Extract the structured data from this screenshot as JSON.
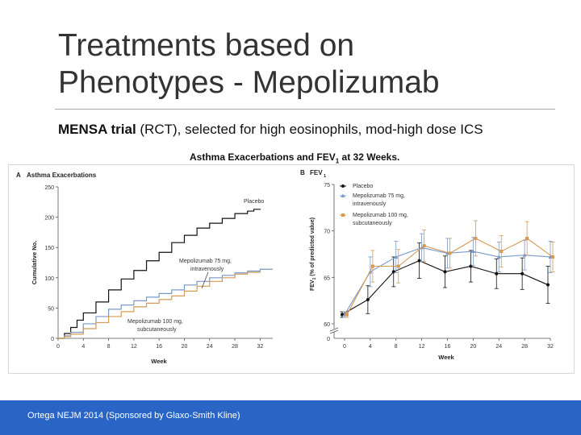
{
  "slide": {
    "title_line1": "Treatments based on",
    "title_line2": "Phenotypes - Mepolizumab",
    "subtitle_bold_1": "MENSA trial",
    "subtitle_mid": " (RCT)",
    "subtitle_rest": ", selected for high eosinophils, mod-high dose ICS",
    "figure_caption_pre": "Asthma Exacerbations and FEV",
    "figure_caption_sub": "1",
    "figure_caption_post": " at 32 Weeks.",
    "footer": "Ortega NEJM 2014 (Sponsored by Glaxo-Smith Kline)"
  },
  "colors": {
    "placebo": "#111111",
    "iv": "#7a98c8",
    "sc": "#d49a56",
    "footer": "#2a65c6"
  },
  "chart_data": [
    {
      "type": "line",
      "panel": "A",
      "title": "Asthma Exacerbations",
      "xlabel": "Week",
      "ylabel": "Cumulative No.",
      "xlim": [
        0,
        34
      ],
      "ylim": [
        0,
        250
      ],
      "xticks": [
        0,
        4,
        8,
        12,
        16,
        20,
        24,
        28,
        32
      ],
      "yticks": [
        0,
        50,
        100,
        150,
        200,
        250
      ],
      "series": [
        {
          "name": "Placebo",
          "label": "Placebo",
          "color_key": "placebo",
          "x": [
            0,
            1,
            2,
            3,
            4,
            6,
            8,
            10,
            12,
            14,
            16,
            18,
            20,
            22,
            24,
            26,
            28,
            30,
            31,
            32
          ],
          "y": [
            0,
            8,
            18,
            30,
            42,
            60,
            80,
            98,
            112,
            128,
            142,
            158,
            170,
            182,
            190,
            198,
            206,
            210,
            213,
            214
          ]
        },
        {
          "name": "Mepolizumab 75 mg IV",
          "label_line1": "Mepolizumab 75 mg,",
          "label_line2": "intravenously",
          "color_key": "iv",
          "x": [
            0,
            1,
            2,
            4,
            6,
            8,
            10,
            12,
            14,
            16,
            18,
            20,
            22,
            24,
            26,
            28,
            30,
            32,
            34
          ],
          "y": [
            0,
            4,
            10,
            24,
            36,
            48,
            55,
            62,
            68,
            74,
            80,
            88,
            94,
            100,
            104,
            108,
            111,
            114,
            114
          ]
        },
        {
          "name": "Mepolizumab 100 mg SC",
          "label_line1": "Mepolizumab 100 mg,",
          "label_line2": "subcutaneously",
          "color_key": "sc",
          "x": [
            0,
            1,
            2,
            4,
            6,
            8,
            10,
            12,
            14,
            16,
            18,
            20,
            22,
            24,
            26,
            28,
            30,
            32
          ],
          "y": [
            0,
            3,
            7,
            16,
            26,
            36,
            44,
            52,
            58,
            64,
            70,
            78,
            86,
            94,
            100,
            106,
            109,
            110
          ]
        }
      ]
    },
    {
      "type": "line",
      "panel": "B",
      "title": "FEV",
      "title_sub": "1",
      "xlabel": "Week",
      "ylabel_pre": "FEV",
      "ylabel_sub": "1",
      "ylabel_post": " (% of predicted value)",
      "xlim": [
        0,
        32
      ],
      "ylim": [
        60,
        75
      ],
      "xticks": [
        0,
        4,
        8,
        12,
        16,
        20,
        24,
        28,
        32
      ],
      "yticks": [
        60,
        65,
        70,
        75
      ],
      "axis_zero_label": "0",
      "legend": [
        "Placebo",
        "Mepolizumab 75 mg, intravenously",
        "Mepolizumab 100 mg, subcutaneously"
      ],
      "legend_lines": [
        [
          "Placebo"
        ],
        [
          "Mepolizumab 75 mg,",
          "intravenously"
        ],
        [
          "Mepolizumab 100 mg,",
          "subcutaneously"
        ]
      ],
      "series": [
        {
          "name": "Placebo",
          "color_key": "placebo",
          "x": [
            0,
            4,
            8,
            12,
            16,
            20,
            24,
            28,
            32
          ],
          "y": [
            61.0,
            62.6,
            65.6,
            66.8,
            65.6,
            66.2,
            65.4,
            65.4,
            64.2
          ],
          "err": [
            0.3,
            1.5,
            1.6,
            1.9,
            1.7,
            1.7,
            1.6,
            1.7,
            2.0
          ]
        },
        {
          "name": "Mepolizumab 75 mg, intravenously",
          "color_key": "iv",
          "x": [
            0,
            4,
            8,
            12,
            16,
            20,
            24,
            28,
            32
          ],
          "y": [
            61.0,
            65.6,
            67.2,
            68.2,
            67.6,
            67.8,
            67.2,
            67.4,
            67.2
          ],
          "err": [
            0.3,
            1.6,
            1.7,
            1.5,
            1.6,
            1.5,
            1.6,
            1.6,
            1.7
          ]
        },
        {
          "name": "Mepolizumab 100 mg, subcutaneously",
          "color_key": "sc",
          "x": [
            0,
            4,
            8,
            12,
            16,
            20,
            24,
            28,
            32
          ],
          "y": [
            61.0,
            66.2,
            66.2,
            68.4,
            67.6,
            69.2,
            67.8,
            69.2,
            67.2
          ],
          "err": [
            0.3,
            1.7,
            1.8,
            1.7,
            1.6,
            1.9,
            1.7,
            1.8,
            1.6
          ]
        }
      ]
    }
  ]
}
